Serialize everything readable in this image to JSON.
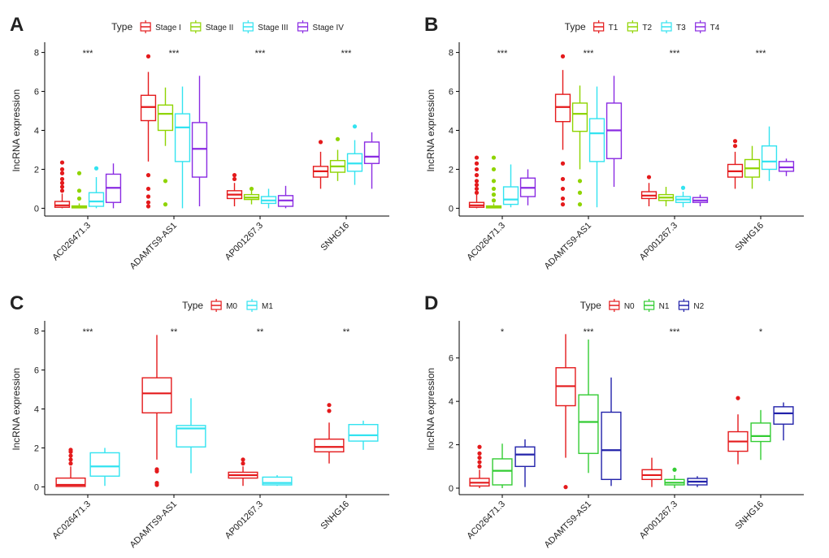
{
  "chart_data": [
    {
      "type": "box",
      "panel": "A",
      "legend_title": "Type",
      "ylabel": "lncRNA expression",
      "categories": [
        "AC026471.3",
        "ADAMTS9-AS1",
        "AP001267.3",
        "SNHG16"
      ],
      "annotations": [
        "***",
        "***",
        "***",
        "***"
      ],
      "ylim": [
        -0.4,
        8.4
      ],
      "yticks": [
        0,
        2,
        4,
        6,
        8
      ],
      "series": [
        {
          "name": "Stage I",
          "color": "#e41a1c",
          "boxes": [
            [
              0,
              0.05,
              0.15,
              0.35,
              0.75
            ],
            [
              2.4,
              4.5,
              5.2,
              5.8,
              7.0
            ],
            [
              0.1,
              0.5,
              0.7,
              0.9,
              1.3
            ],
            [
              1.0,
              1.6,
              1.9,
              2.15,
              2.9
            ]
          ],
          "outliers": [
            [
              0.9,
              1.1,
              1.3,
              1.5,
              1.8,
              2.0,
              2.35
            ],
            [
              0.1,
              0.3,
              0.6,
              1.0,
              1.7,
              7.8
            ],
            [
              1.5,
              1.7
            ],
            [
              3.4
            ]
          ]
        },
        {
          "name": "Stage II",
          "color": "#8fd400",
          "boxes": [
            [
              0,
              0.02,
              0.05,
              0.12,
              0.25
            ],
            [
              3.2,
              4.0,
              4.85,
              5.3,
              6.2
            ],
            [
              0.2,
              0.45,
              0.55,
              0.7,
              0.9
            ],
            [
              1.4,
              1.85,
              2.15,
              2.45,
              3.0
            ]
          ],
          "outliers": [
            [
              0.5,
              0.9,
              1.8
            ],
            [
              0.2,
              1.4
            ],
            [
              1.0
            ],
            [
              3.55
            ]
          ]
        },
        {
          "name": "Stage III",
          "color": "#33e3f0",
          "boxes": [
            [
              0,
              0.1,
              0.35,
              0.8,
              1.6
            ],
            [
              0,
              2.4,
              4.15,
              4.85,
              6.25
            ],
            [
              0,
              0.25,
              0.4,
              0.6,
              1.0
            ],
            [
              1.2,
              1.9,
              2.3,
              2.8,
              3.5
            ]
          ],
          "outliers": [
            [
              2.05
            ],
            [],
            [],
            [
              4.2
            ]
          ]
        },
        {
          "name": "Stage IV",
          "color": "#8a2be2",
          "boxes": [
            [
              0,
              0.3,
              1.05,
              1.75,
              2.3
            ],
            [
              0.1,
              1.6,
              3.05,
              4.4,
              6.8
            ],
            [
              0,
              0.1,
              0.4,
              0.65,
              1.15
            ],
            [
              1.0,
              2.3,
              2.65,
              3.4,
              3.9
            ]
          ],
          "outliers": [
            [],
            [],
            [],
            []
          ]
        }
      ]
    },
    {
      "type": "box",
      "panel": "B",
      "legend_title": "Type",
      "ylabel": "lncRNA expression",
      "categories": [
        "AC026471.3",
        "ADAMTS9-AS1",
        "AP001267.3",
        "SNHG16"
      ],
      "annotations": [
        "***",
        "***",
        "***",
        "***"
      ],
      "ylim": [
        -0.4,
        8.4
      ],
      "yticks": [
        0,
        2,
        4,
        6,
        8
      ],
      "series": [
        {
          "name": "T1",
          "color": "#e41a1c",
          "boxes": [
            [
              0,
              0.05,
              0.15,
              0.3,
              0.7
            ],
            [
              3.0,
              4.45,
              5.2,
              5.85,
              7.1
            ],
            [
              0.1,
              0.5,
              0.65,
              0.85,
              1.3
            ],
            [
              1.0,
              1.6,
              1.9,
              2.25,
              2.9
            ]
          ],
          "outliers": [
            [
              0.8,
              1.0,
              1.2,
              1.4,
              1.7,
              2.0,
              2.3,
              2.6
            ],
            [
              0.2,
              0.5,
              1.0,
              1.5,
              2.3,
              7.8
            ],
            [
              1.6
            ],
            [
              3.2,
              3.45
            ]
          ]
        },
        {
          "name": "T2",
          "color": "#8fd400",
          "boxes": [
            [
              0,
              0.02,
              0.05,
              0.12,
              0.25
            ],
            [
              2.0,
              3.95,
              4.85,
              5.4,
              6.3
            ],
            [
              0.1,
              0.4,
              0.55,
              0.7,
              1.1
            ],
            [
              1.0,
              1.6,
              2.05,
              2.5,
              3.2
            ]
          ],
          "outliers": [
            [
              0.4,
              0.7,
              1.0,
              1.4,
              2.0,
              2.6
            ],
            [
              0.2,
              0.8,
              1.4
            ],
            [],
            []
          ]
        },
        {
          "name": "T3",
          "color": "#33e3f0",
          "boxes": [
            [
              0.05,
              0.2,
              0.45,
              1.1,
              2.25
            ],
            [
              0.05,
              2.4,
              3.85,
              4.6,
              6.25
            ],
            [
              0.05,
              0.3,
              0.45,
              0.6,
              0.85
            ],
            [
              1.4,
              2.0,
              2.4,
              3.2,
              4.2
            ]
          ],
          "outliers": [
            [],
            [],
            [
              1.05
            ],
            []
          ]
        },
        {
          "name": "T4",
          "color": "#8a2be2",
          "boxes": [
            [
              0.15,
              0.6,
              1.05,
              1.55,
              2.0
            ],
            [
              1.1,
              2.55,
              4.0,
              5.4,
              6.8
            ],
            [
              0.1,
              0.3,
              0.4,
              0.55,
              0.7
            ],
            [
              1.65,
              1.9,
              2.1,
              2.4,
              2.55
            ]
          ],
          "outliers": [
            [],
            [],
            [],
            []
          ]
        }
      ]
    },
    {
      "type": "box",
      "panel": "C",
      "legend_title": "Type",
      "ylabel": "lncRNA expression",
      "categories": [
        "AC026471.3",
        "ADAMTS9-AS1",
        "AP001267.3",
        "SNHG16"
      ],
      "annotations": [
        "***",
        "**",
        "**",
        "**"
      ],
      "ylim": [
        -0.4,
        8.4
      ],
      "yticks": [
        0,
        2,
        4,
        6,
        8
      ],
      "series": [
        {
          "name": "M0",
          "color": "#e41a1c",
          "boxes": [
            [
              0,
              0.02,
              0.1,
              0.45,
              1.05
            ],
            [
              1.4,
              3.8,
              4.8,
              5.6,
              7.8
            ],
            [
              0.05,
              0.45,
              0.6,
              0.75,
              1.05
            ],
            [
              1.2,
              1.8,
              2.05,
              2.45,
              3.3
            ]
          ],
          "outliers": [
            [
              1.2,
              1.4,
              1.6,
              1.8,
              1.9
            ],
            [
              0.1,
              0.2,
              0.8,
              0.9
            ],
            [
              1.2,
              1.4
            ],
            [
              3.9,
              4.2
            ]
          ]
        },
        {
          "name": "M1",
          "color": "#33e3f0",
          "boxes": [
            [
              0.05,
              0.55,
              1.05,
              1.75,
              2.0
            ],
            [
              0.7,
              2.05,
              3.0,
              3.15,
              4.55
            ],
            [
              0.05,
              0.1,
              0.2,
              0.5,
              0.6
            ],
            [
              1.9,
              2.35,
              2.65,
              3.2,
              3.4
            ]
          ],
          "outliers": [
            [],
            [],
            [],
            []
          ]
        }
      ]
    },
    {
      "type": "box",
      "panel": "D",
      "legend_title": "Type",
      "ylabel": "lncRNA expression",
      "categories": [
        "AC026471.3",
        "ADAMTS9-AS1",
        "AP001267.3",
        "SNHG16"
      ],
      "annotations": [
        "*",
        "***",
        "***",
        "*"
      ],
      "ylim": [
        -0.3,
        7.6
      ],
      "yticks": [
        0,
        2,
        4,
        6
      ],
      "series": [
        {
          "name": "N0",
          "color": "#e41a1c",
          "boxes": [
            [
              0,
              0.1,
              0.25,
              0.45,
              0.85
            ],
            [
              1.4,
              3.8,
              4.7,
              5.55,
              7.1
            ],
            [
              0.05,
              0.4,
              0.6,
              0.85,
              1.4
            ],
            [
              1.1,
              1.7,
              2.15,
              2.6,
              3.4
            ]
          ],
          "outliers": [
            [
              1.0,
              1.2,
              1.4,
              1.6,
              1.9
            ],
            [
              0.05
            ],
            [],
            [
              4.15
            ]
          ]
        },
        {
          "name": "N1",
          "color": "#33cc33",
          "boxes": [
            [
              0,
              0.15,
              0.8,
              1.35,
              2.05
            ],
            [
              0.7,
              1.6,
              3.05,
              4.3,
              6.85
            ],
            [
              0,
              0.15,
              0.25,
              0.4,
              0.6
            ],
            [
              1.3,
              2.15,
              2.4,
              3.0,
              3.6
            ]
          ],
          "outliers": [
            [],
            [],
            [
              0.85
            ],
            []
          ]
        },
        {
          "name": "N2",
          "color": "#2222aa",
          "boxes": [
            [
              0.05,
              1.0,
              1.55,
              1.9,
              2.25
            ],
            [
              0.1,
              0.4,
              1.75,
              3.5,
              5.1
            ],
            [
              0.05,
              0.15,
              0.3,
              0.45,
              0.55
            ],
            [
              2.2,
              2.95,
              3.45,
              3.75,
              3.95
            ]
          ],
          "outliers": [
            [],
            [],
            [],
            []
          ]
        }
      ]
    }
  ]
}
